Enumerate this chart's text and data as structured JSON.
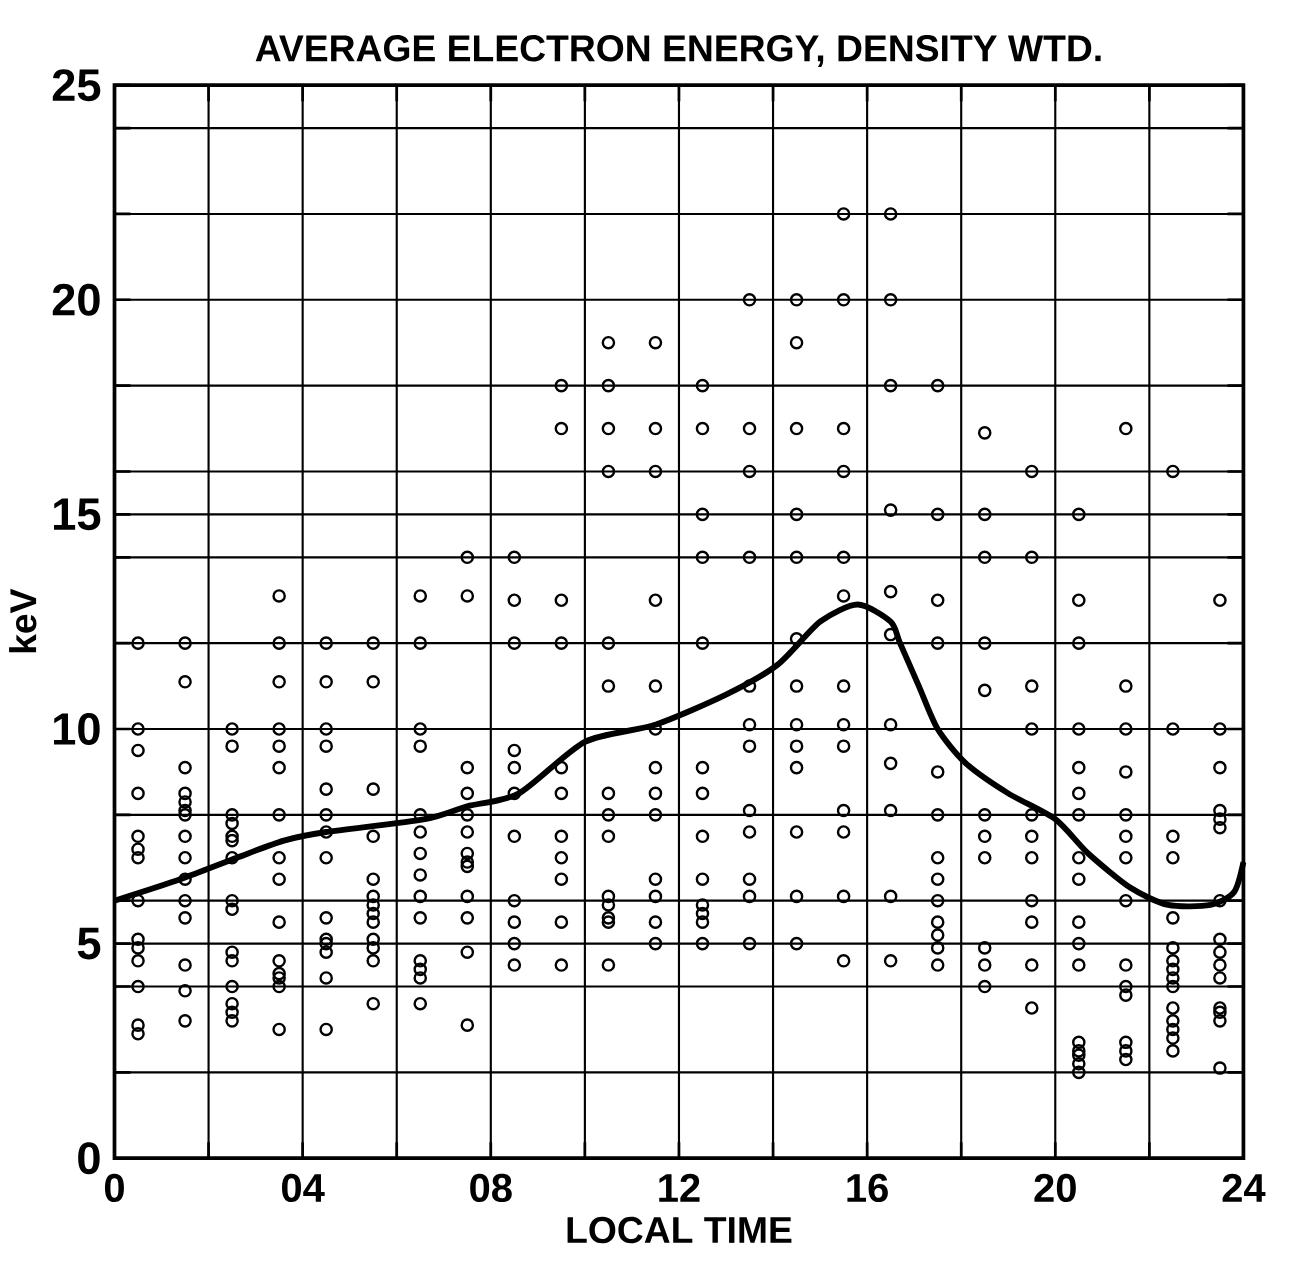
{
  "chart_data": {
    "type": "scatter",
    "title": "AVERAGE ELECTRON ENERGY, DENSITY WTD.",
    "xlabel": "LOCAL TIME",
    "ylabel": "keV",
    "xlim": [
      0,
      24
    ],
    "ylim": [
      0,
      25
    ],
    "xticks": [
      0,
      {
        "value": 2,
        "label": null
      },
      {
        "value": 4,
        "label": "04"
      },
      {
        "value": 6,
        "label": null
      },
      {
        "value": 8,
        "label": "08"
      },
      {
        "value": 10,
        "label": null
      },
      12,
      {
        "value": 14,
        "label": null
      },
      16,
      {
        "value": 18,
        "label": null
      },
      20,
      {
        "value": 22,
        "label": null
      },
      24
    ],
    "yticks": [
      0,
      {
        "value": 2,
        "label": null
      },
      {
        "value": 4,
        "label": null
      },
      5,
      {
        "value": 6,
        "label": null
      },
      {
        "value": 8,
        "label": null
      },
      10,
      {
        "value": 12,
        "label": null
      },
      {
        "value": 14,
        "label": null
      },
      15,
      {
        "value": 16,
        "label": null
      },
      {
        "value": 18,
        "label": null
      },
      20,
      {
        "value": 22,
        "label": null
      },
      {
        "value": 24,
        "label": null
      },
      25
    ],
    "grid": true,
    "marker": "circle",
    "series": [
      {
        "color": "#000000",
        "x": [
          0.5,
          0.5,
          0.5,
          0.5,
          0.5,
          0.5,
          0.5,
          0.5,
          0.5,
          0.5,
          0.5,
          0.5,
          0.5,
          0.5
        ],
        "values": [
          12,
          10,
          9.5,
          8.5,
          7.5,
          7.2,
          7.0,
          6,
          5.1,
          4.9,
          4.6,
          4,
          3.1,
          2.9
        ]
      },
      {
        "color": "#000000",
        "x": [
          1.5,
          1.5,
          1.5,
          1.5,
          1.5,
          1.5,
          1.5,
          1.5,
          1.5,
          1.5,
          1.5,
          1.5,
          1.5,
          1.5,
          1.5
        ],
        "values": [
          12,
          11.1,
          9.1,
          8.5,
          8.3,
          8.1,
          8,
          7.5,
          7.0,
          6.5,
          6,
          5.6,
          4.5,
          3.9,
          3.2
        ]
      },
      {
        "color": "#000000",
        "x": [
          2.5,
          2.5,
          2.5,
          2.5,
          2.5,
          2.5,
          2.5,
          2.5,
          2.5,
          2.5,
          2.5,
          2.5,
          2.5,
          2.5,
          2.5
        ],
        "values": [
          10,
          9.6,
          8,
          7.8,
          7.5,
          7.4,
          7.0,
          6,
          5.8,
          4.8,
          4.6,
          4,
          3.6,
          3.4,
          3.2
        ]
      },
      {
        "color": "#000000",
        "x": [
          3.5,
          3.5,
          3.5,
          3.5,
          3.5,
          3.5,
          3.5,
          3.5,
          3.5,
          3.5,
          3.5,
          3.5,
          3.5,
          3.5,
          3.5
        ],
        "values": [
          13.1,
          12,
          11.1,
          10,
          9.6,
          9.1,
          8,
          7.0,
          6.5,
          5.5,
          4.6,
          4.3,
          4.2,
          4,
          3.0
        ]
      },
      {
        "color": "#000000",
        "x": [
          4.5,
          4.5,
          4.5,
          4.5,
          4.5,
          4.5,
          4.5,
          4.5,
          4.5,
          4.5,
          4.5,
          4.5,
          4.5,
          4.5
        ],
        "values": [
          12,
          11.1,
          10,
          9.6,
          8.6,
          8,
          7.6,
          7.0,
          5.6,
          5.1,
          5.0,
          4.8,
          4.2,
          3.0
        ]
      },
      {
        "color": "#000000",
        "x": [
          5.5,
          5.5,
          5.5,
          5.5,
          5.5,
          5.5,
          5.5,
          5.5,
          5.5,
          5.5,
          5.5,
          5.5,
          5.5
        ],
        "values": [
          12,
          11.1,
          8.6,
          7.5,
          6.5,
          6.1,
          5.9,
          5.7,
          5.5,
          5.1,
          4.9,
          4.6,
          3.6
        ]
      },
      {
        "color": "#000000",
        "x": [
          6.5,
          6.5,
          6.5,
          6.5,
          6.5,
          6.5,
          6.5,
          6.5,
          6.5,
          6.5,
          6.5,
          6.5,
          6.5,
          6.5
        ],
        "values": [
          13.1,
          12,
          10,
          9.6,
          8,
          7.6,
          7.1,
          6.6,
          6.1,
          5.6,
          4.6,
          4.4,
          4.2,
          3.6
        ]
      },
      {
        "color": "#000000",
        "x": [
          7.5,
          7.5,
          7.5,
          7.5,
          7.5,
          7.5,
          7.5,
          7.5,
          7.5,
          7.5,
          7.5,
          7.5,
          7.5
        ],
        "values": [
          14,
          13.1,
          9.1,
          8.5,
          8,
          7.6,
          7.1,
          6.9,
          6.8,
          6.1,
          5.6,
          4.8,
          3.1
        ]
      },
      {
        "color": "#000000",
        "x": [
          8.5,
          8.5,
          8.5,
          8.5,
          8.5,
          8.5,
          8.5,
          8.5,
          8.5,
          8.5,
          8.5
        ],
        "values": [
          14,
          13,
          12,
          9.5,
          9.1,
          8.5,
          7.5,
          6,
          5.5,
          5.0,
          4.5
        ]
      },
      {
        "color": "#000000",
        "x": [
          9.5,
          9.5,
          9.5,
          9.5,
          9.5,
          9.5,
          9.5,
          9.5,
          9.5,
          9.5,
          9.5
        ],
        "values": [
          18,
          17,
          13,
          12,
          9.1,
          8.5,
          7.5,
          7.0,
          6.5,
          5.5,
          4.5
        ]
      },
      {
        "color": "#000000",
        "x": [
          10.5,
          10.5,
          10.5,
          10.5,
          10.5,
          10.5,
          10.5,
          10.5,
          10.5,
          10.5,
          10.5,
          10.5,
          10.5,
          10.5
        ],
        "values": [
          19,
          18,
          17,
          16,
          12,
          11,
          8.5,
          8,
          7.5,
          6.1,
          5.9,
          5.6,
          5.5,
          4.5
        ]
      },
      {
        "color": "#000000",
        "x": [
          11.5,
          11.5,
          11.5,
          11.5,
          11.5,
          11.5,
          11.5,
          11.5,
          11.5,
          11.5,
          11.5,
          11.5,
          11.5
        ],
        "values": [
          19,
          17,
          16,
          13,
          11,
          10,
          9.1,
          8.5,
          8,
          6.5,
          6.1,
          5.5,
          5.0
        ]
      },
      {
        "color": "#000000",
        "x": [
          12.5,
          12.5,
          12.5,
          12.5,
          12.5,
          12.5,
          12.5,
          12.5,
          12.5,
          12.5,
          12.5,
          12.5,
          12.5
        ],
        "values": [
          18,
          17,
          15,
          14,
          12,
          9.1,
          8.5,
          7.5,
          6.5,
          5.9,
          5.7,
          5.5,
          5.0
        ]
      },
      {
        "color": "#000000",
        "x": [
          13.5,
          13.5,
          13.5,
          13.5,
          13.5,
          13.5,
          13.5,
          13.5,
          13.5,
          13.5,
          13.5,
          13.5
        ],
        "values": [
          20,
          17,
          16,
          14,
          11,
          10.1,
          9.6,
          8.1,
          7.6,
          6.5,
          6.1,
          5.0
        ]
      },
      {
        "color": "#000000",
        "x": [
          14.5,
          14.5,
          14.5,
          14.5,
          14.5,
          14.5,
          14.5,
          14.5,
          14.5,
          14.5,
          14.5,
          14.5,
          14.5
        ],
        "values": [
          20,
          19,
          17,
          15,
          14,
          12.1,
          11,
          10.1,
          9.6,
          9.1,
          7.6,
          6.1,
          5.0
        ]
      },
      {
        "color": "#000000",
        "x": [
          15.5,
          15.5,
          15.5,
          15.5,
          15.5,
          15.5,
          15.5,
          15.5,
          15.5,
          15.5,
          15.5,
          15.5,
          15.5
        ],
        "values": [
          22,
          20,
          17,
          16,
          14,
          13.1,
          11,
          10.1,
          9.6,
          8.1,
          7.6,
          6.1,
          4.6
        ]
      },
      {
        "color": "#000000",
        "x": [
          16.5,
          16.5,
          16.5,
          16.5,
          16.5,
          16.5,
          16.5,
          16.5,
          16.5,
          16.5,
          16.5
        ],
        "values": [
          22,
          20,
          18,
          15.1,
          13.2,
          12.2,
          10.1,
          9.2,
          8.1,
          6.1,
          4.6
        ]
      },
      {
        "color": "#000000",
        "x": [
          17.5,
          17.5,
          17.5,
          17.5,
          17.5,
          17.5,
          17.5,
          17.5,
          17.5,
          17.5,
          17.5,
          17.5,
          17.5
        ],
        "values": [
          18,
          15,
          13,
          12,
          9,
          8,
          7,
          6.5,
          6,
          5.5,
          5.2,
          4.9,
          4.5
        ]
      },
      {
        "color": "#000000",
        "x": [
          18.5,
          18.5,
          18.5,
          18.5,
          18.5,
          18.5,
          18.5,
          18.5,
          18.5,
          18.5,
          18.5
        ],
        "values": [
          16.9,
          15,
          14,
          12,
          10.9,
          8,
          7.5,
          7,
          4.9,
          4.5,
          4
        ]
      },
      {
        "color": "#000000",
        "x": [
          19.5,
          19.5,
          19.5,
          19.5,
          19.5,
          19.5,
          19.5,
          19.5,
          19.5,
          19.5,
          19.5
        ],
        "values": [
          16,
          14,
          11,
          10,
          8,
          7.5,
          7,
          6,
          5.5,
          4.5,
          3.5
        ]
      },
      {
        "color": "#000000",
        "x": [
          20.5,
          20.5,
          20.5,
          20.5,
          20.5,
          20.5,
          20.5,
          20.5,
          20.5,
          20.5,
          20.5,
          20.5,
          20.5,
          20.5,
          20.5,
          20.5,
          20.5
        ],
        "values": [
          15,
          13,
          12,
          10,
          9.1,
          8.5,
          8,
          7,
          6.5,
          5.5,
          5,
          4.5,
          2.7,
          2.5,
          2.4,
          2.2,
          2.0
        ]
      },
      {
        "color": "#000000",
        "x": [
          21.5,
          21.5,
          21.5,
          21.5,
          21.5,
          21.5,
          21.5,
          21.5,
          21.5,
          21.5,
          21.5,
          21.5,
          21.5,
          21.5
        ],
        "values": [
          17,
          11,
          10,
          9,
          8,
          7.5,
          7,
          6,
          4.5,
          4,
          3.8,
          2.7,
          2.5,
          2.3
        ]
      },
      {
        "color": "#000000",
        "x": [
          22.5,
          22.5,
          22.5,
          22.5,
          22.5,
          22.5,
          22.5,
          22.5,
          22.5,
          22.5,
          22.5,
          22.5,
          22.5,
          22.5,
          22.5
        ],
        "values": [
          16,
          10,
          7.5,
          7,
          5.6,
          4.9,
          4.6,
          4.4,
          4.2,
          4,
          3.5,
          3.2,
          3.0,
          2.8,
          2.5
        ]
      },
      {
        "color": "#000000",
        "x": [
          23.5,
          23.5,
          23.5,
          23.5,
          23.5,
          23.5,
          23.5,
          23.5,
          23.5,
          23.5,
          23.5,
          23.5,
          23.5,
          23.5,
          23.5
        ],
        "values": [
          13,
          10,
          9.1,
          8.1,
          7.9,
          7.7,
          6,
          5.1,
          4.8,
          4.5,
          4.2,
          3.5,
          3.4,
          3.2,
          2.1
        ]
      },
      {
        "type": "line",
        "color": "#000000",
        "marker": "none",
        "line_style": "solid",
        "x": [
          0,
          1.4,
          2.6,
          3.6,
          4.5,
          6.6,
          7.5,
          8.6,
          10.0,
          11.5,
          13.0,
          14.1,
          15.0,
          15.8,
          16.5,
          16.7,
          17.1,
          17.5,
          18.1,
          19.0,
          20.0,
          20.7,
          21.6,
          22.4,
          23.3,
          23.8,
          24
        ],
        "values": [
          6.0,
          6.5,
          7.0,
          7.4,
          7.6,
          7.9,
          8.2,
          8.5,
          9.7,
          10.1,
          10.8,
          11.5,
          12.5,
          12.9,
          12.5,
          12.0,
          11.0,
          10.0,
          9.2,
          8.5,
          7.9,
          7.1,
          6.3,
          5.9,
          5.9,
          6.2,
          6.9
        ]
      }
    ]
  }
}
